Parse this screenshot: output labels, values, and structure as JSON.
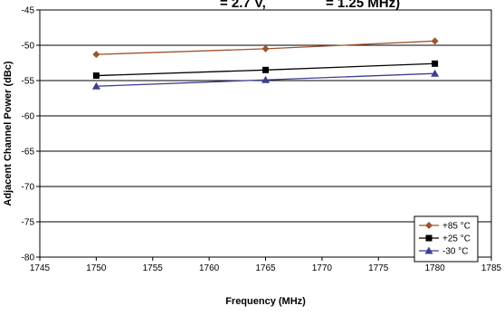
{
  "chart_data": {
    "type": "line",
    "title": "",
    "xlabel": "Frequency (MHz)",
    "ylabel": "Adjacent Channel Power (dBc)",
    "xlim": [
      1745,
      1785
    ],
    "ylim": [
      -80,
      -45
    ],
    "xticks": [
      "1745",
      "1750",
      "1755",
      "1760",
      "1765",
      "1770",
      "1775",
      "1780",
      "1785"
    ],
    "yticks": [
      "-45",
      "-50",
      "-55",
      "-60",
      "-65",
      "-70",
      "-75",
      "-80"
    ],
    "grid": "horizontal",
    "legend_position": "bottom-right",
    "x": [
      1750,
      1765,
      1780
    ],
    "series": [
      {
        "name": "+85 °C",
        "values": [
          -51.3,
          -50.5,
          -49.4
        ],
        "color": "#A0522D",
        "marker": "diamond"
      },
      {
        "name": "+25 °C",
        "values": [
          -54.3,
          -53.5,
          -52.6
        ],
        "color": "#000000",
        "marker": "square"
      },
      {
        "name": "-30 °C",
        "values": [
          -55.8,
          -54.9,
          -54.0
        ],
        "color": "#3F3F8F",
        "marker": "triangle"
      }
    ]
  }
}
